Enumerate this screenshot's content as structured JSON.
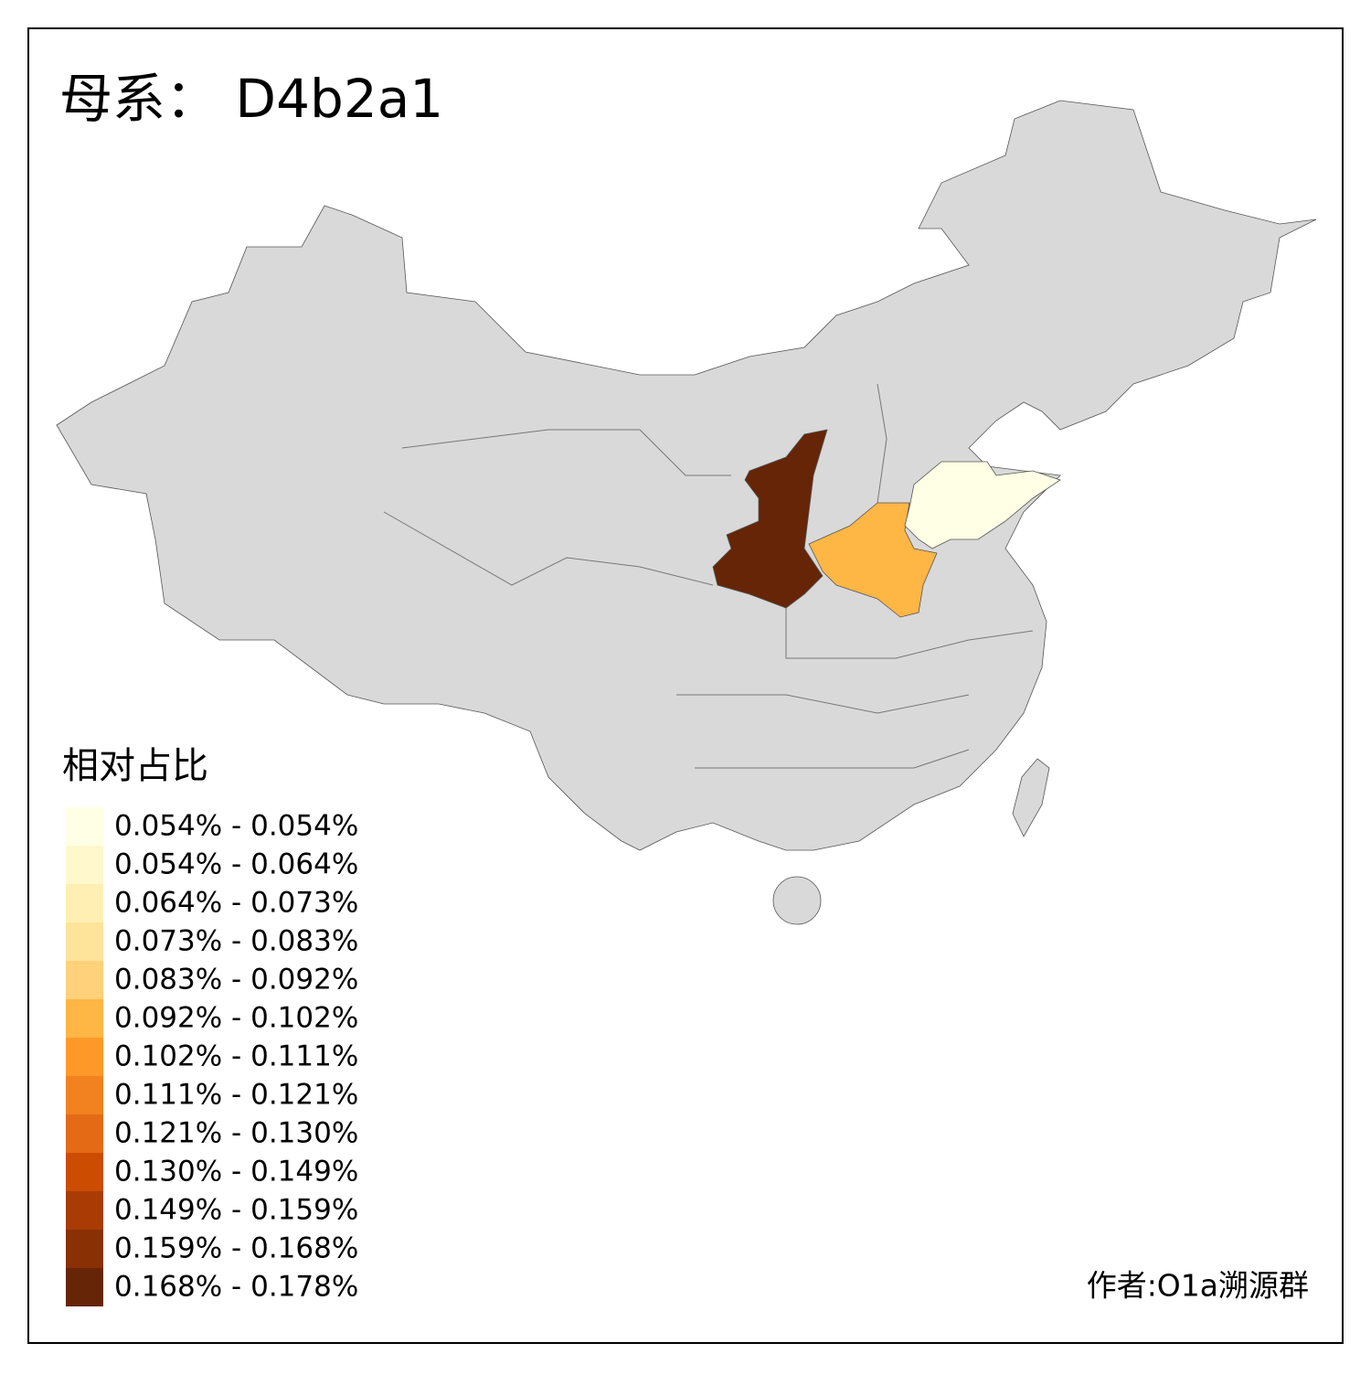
{
  "header": {
    "title": "母系： D4b2a1"
  },
  "legend": {
    "title": "相对占比",
    "items": [
      {
        "label": "0.054% - 0.054%",
        "color": "#ffffe5"
      },
      {
        "label": "0.054% - 0.064%",
        "color": "#fff8cc"
      },
      {
        "label": "0.064% - 0.073%",
        "color": "#ffefb3"
      },
      {
        "label": "0.073% - 0.083%",
        "color": "#fee49a"
      },
      {
        "label": "0.083% - 0.092%",
        "color": "#fed17a"
      },
      {
        "label": "0.092% - 0.102%",
        "color": "#feb645"
      },
      {
        "label": "0.102% - 0.111%",
        "color": "#fe9929"
      },
      {
        "label": "0.111% - 0.121%",
        "color": "#f1821f"
      },
      {
        "label": "0.121% - 0.130%",
        "color": "#e46a16"
      },
      {
        "label": "0.130% - 0.149%",
        "color": "#cc4c02"
      },
      {
        "label": "0.149% - 0.159%",
        "color": "#a83c04"
      },
      {
        "label": "0.159% - 0.168%",
        "color": "#8a3005"
      },
      {
        "label": "0.168% - 0.178%",
        "color": "#662506"
      }
    ]
  },
  "footer": {
    "credit": "作者:O1a溯源群"
  }
}
